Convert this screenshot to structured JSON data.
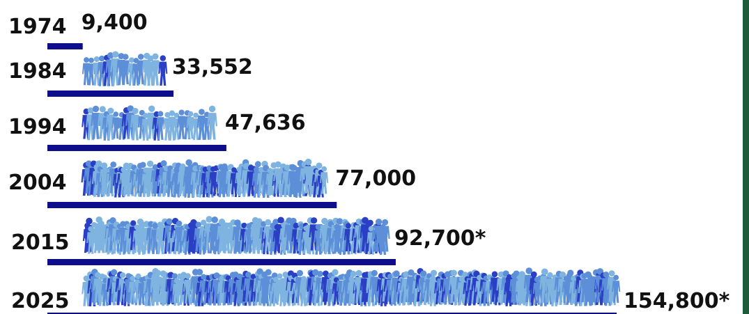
{
  "colors": {
    "bar": "#0e0e8c",
    "figure_light": "#7fb3e0",
    "figure_mid": "#5c8fd8",
    "figure_dark": "#2a3fc4",
    "border": "#1f5a3a"
  },
  "chart_data": {
    "type": "bar",
    "orientation": "horizontal",
    "categories": [
      "1974",
      "1984",
      "1994",
      "2004",
      "2015",
      "2025"
    ],
    "values": [
      9400,
      33552,
      47636,
      77000,
      92700,
      154800
    ],
    "value_labels": [
      "9,400",
      "33,552",
      "47,636",
      "77,000",
      "92,700*",
      "154,800*"
    ],
    "icon": "crowd-of-people-icon",
    "grid": false,
    "legend": "none"
  }
}
